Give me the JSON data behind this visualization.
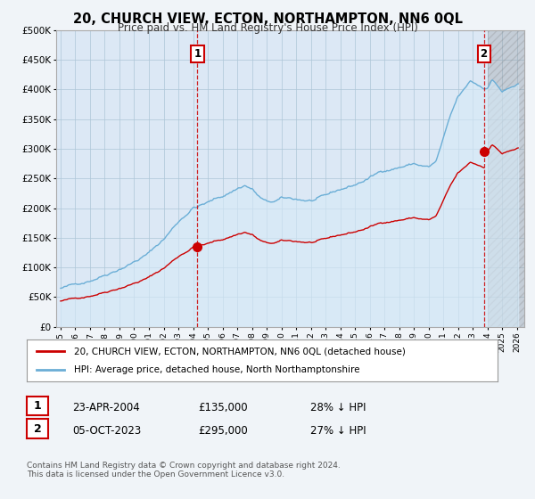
{
  "title": "20, CHURCH VIEW, ECTON, NORTHAMPTON, NN6 0QL",
  "subtitle": "Price paid vs. HM Land Registry's House Price Index (HPI)",
  "hpi_label": "HPI: Average price, detached house, North Northamptonshire",
  "property_label": "20, CHURCH VIEW, ECTON, NORTHAMPTON, NN6 0QL (detached house)",
  "transaction1": {
    "label": "1",
    "date": "23-APR-2004",
    "price": "£135,000",
    "hpi_diff": "28% ↓ HPI"
  },
  "transaction2": {
    "label": "2",
    "date": "05-OCT-2023",
    "price": "£295,000",
    "hpi_diff": "27% ↓ HPI"
  },
  "footnote": "Contains HM Land Registry data © Crown copyright and database right 2024.\nThis data is licensed under the Open Government Licence v3.0.",
  "ylim": [
    0,
    500000
  ],
  "yticks": [
    0,
    50000,
    100000,
    150000,
    200000,
    250000,
    300000,
    350000,
    400000,
    450000,
    500000
  ],
  "hpi_color": "#6baed6",
  "hpi_fill_color": "#d6eaf8",
  "property_color": "#cc0000",
  "vline_color": "#cc0000",
  "marker1_x": 2004.3,
  "marker1_y": 135000,
  "marker2_x": 2023.75,
  "marker2_y": 295000,
  "sale1_year": 2004.3,
  "sale2_year": 2023.75,
  "background_color": "#f0f4f8",
  "plot_bg_color": "#dce8f5",
  "grid_color": "#aec6d8",
  "future_hatch_start": 2024.0,
  "xlim_start": 1994.7,
  "xlim_end": 2026.5
}
